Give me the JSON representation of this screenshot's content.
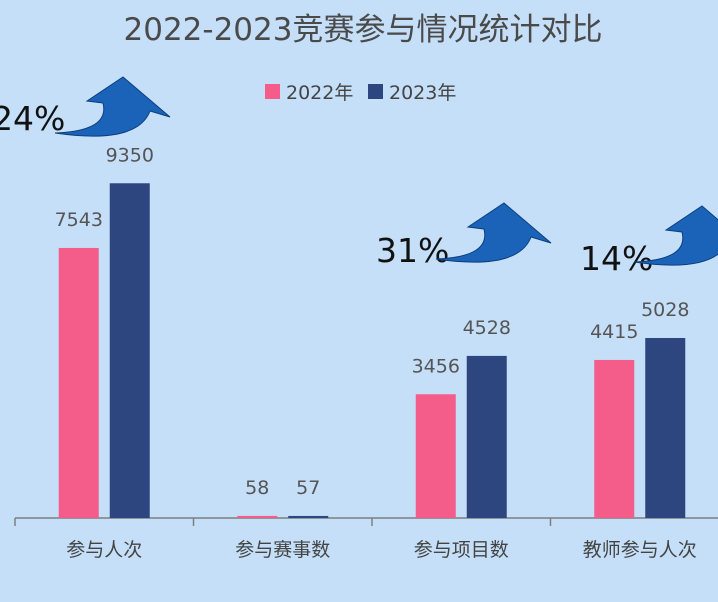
{
  "chart_data": {
    "type": "bar",
    "title": "2022-2023竞赛参与情况统计对比",
    "categories": [
      "参与人次",
      "参与赛事数",
      "参与项目数",
      "教师参与人次"
    ],
    "series": [
      {
        "name": "2022年",
        "color": "#f45c8a",
        "values": [
          7543,
          58,
          3456,
          4415
        ]
      },
      {
        "name": "2023年",
        "color": "#2d4680",
        "values": [
          9350,
          57,
          4528,
          5028
        ]
      }
    ],
    "ylim": [
      0,
      10800
    ],
    "legend": "top-center",
    "grid": false,
    "annotations": [
      {
        "category": "参与人次",
        "text": "24%"
      },
      {
        "category": "参与项目数",
        "text": "31%"
      },
      {
        "category": "教师参与人次",
        "text": "14%"
      }
    ],
    "arrow_color": "#1a63b8",
    "xlabel": "",
    "ylabel": ""
  }
}
